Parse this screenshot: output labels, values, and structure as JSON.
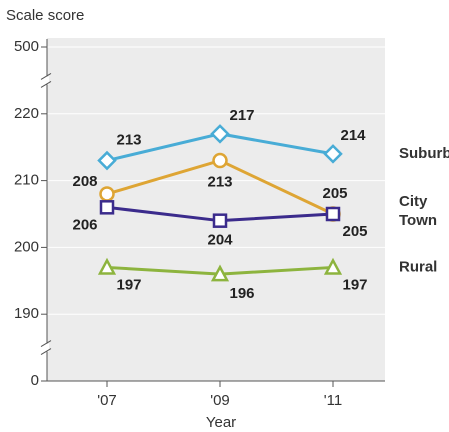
{
  "chart_data": {
    "type": "line",
    "y_label": "Scale score",
    "x_label": "Year",
    "categories": [
      "'07",
      "'09",
      "'11"
    ],
    "series": [
      {
        "name": "Suburb",
        "color": "#48acd6",
        "marker": "diamond",
        "values": [
          213,
          217,
          214
        ]
      },
      {
        "name": "City",
        "color": "#dea534",
        "marker": "circle",
        "values": [
          208,
          213,
          205
        ]
      },
      {
        "name": "Town",
        "color": "#3b2b8c",
        "marker": "square",
        "values": [
          206,
          204,
          205
        ]
      },
      {
        "name": "Rural",
        "color": "#8db43e",
        "marker": "triangle",
        "values": [
          197,
          196,
          197
        ]
      }
    ],
    "ylim": [
      0,
      500
    ],
    "yticks": [
      0,
      190,
      200,
      210,
      220,
      500
    ],
    "y_breaks": [
      [
        0,
        190
      ],
      [
        220,
        500
      ]
    ],
    "grid": true
  }
}
